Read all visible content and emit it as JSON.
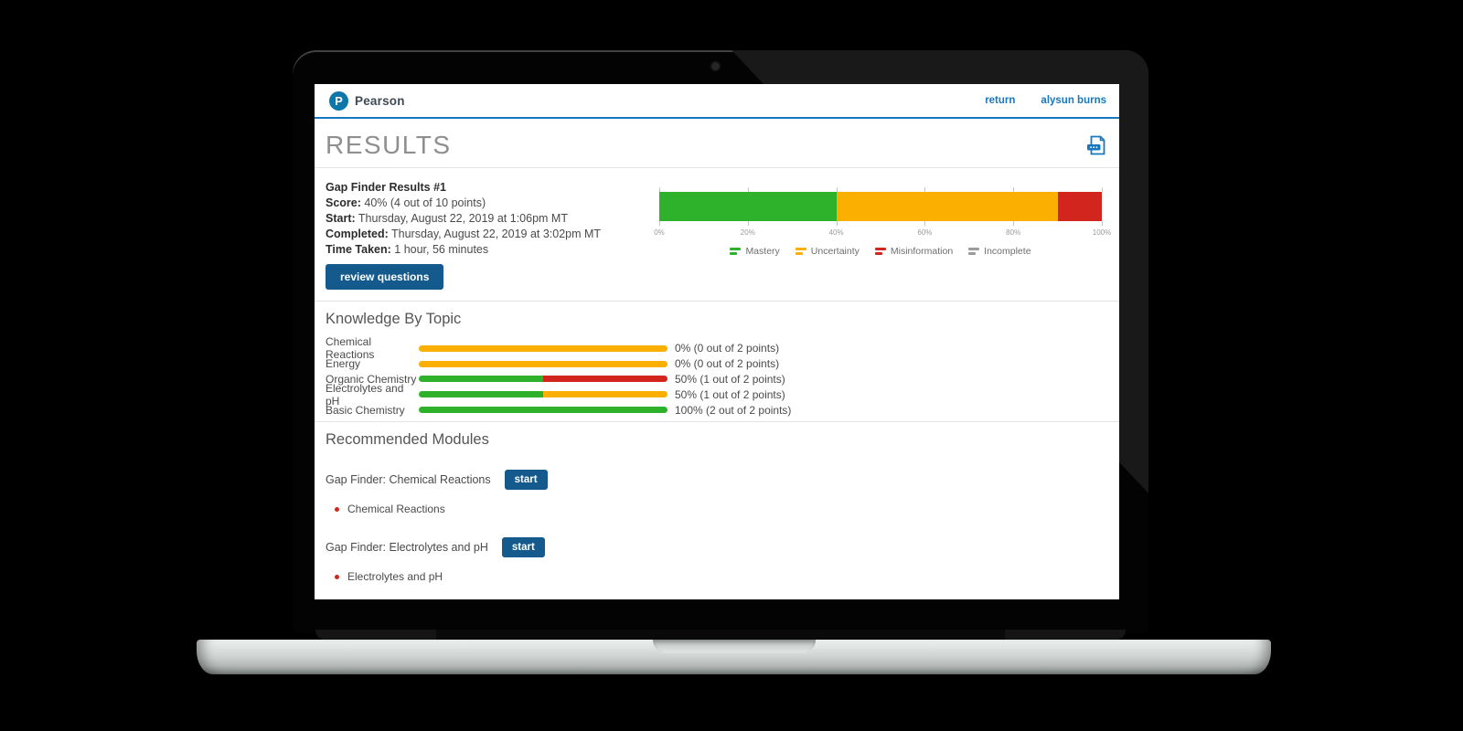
{
  "colors": {
    "green": "#2eb22b",
    "orange": "#fbaf00",
    "red": "#d1251d",
    "gray": "#9b9b9b",
    "link_blue": "#1878bf",
    "button_blue": "#155a8c",
    "logo_blue": "#0e76a8",
    "bullet_red": "#cc2a1e"
  },
  "icons": {
    "logo": "pearson-logo",
    "header_action": "pdf-print-icon",
    "legend_glyph": "mini-bar-chart-icon"
  },
  "header": {
    "brand": "Pearson",
    "logo_letter": "P",
    "links": [
      {
        "label": "return"
      },
      {
        "label": "alysun burns"
      }
    ]
  },
  "page": {
    "title": "RESULTS"
  },
  "summary": {
    "title": "Gap Finder Results #1",
    "fields": [
      {
        "label": "Score:",
        "value": "40% (4 out of 10 points)"
      },
      {
        "label": "Start:",
        "value": "Thursday, August 22, 2019 at 1:06pm MT"
      },
      {
        "label": "Completed:",
        "value": "Thursday, August 22, 2019 at 3:02pm MT"
      },
      {
        "label": "Time Taken:",
        "value": "1 hour, 56 minutes"
      }
    ],
    "review_button": "review questions"
  },
  "chart_data": {
    "type": "bar",
    "orientation": "horizontal",
    "stacked": true,
    "series": [
      {
        "name": "Mastery",
        "value": 40,
        "color": "#2eb22b"
      },
      {
        "name": "Uncertainty",
        "value": 50,
        "color": "#fbaf00"
      },
      {
        "name": "Misinformation",
        "value": 10,
        "color": "#d1251d"
      },
      {
        "name": "Incomplete",
        "value": 0,
        "color": "#9b9b9b"
      }
    ],
    "xlim": [
      0,
      100
    ],
    "ticks": [
      "0%",
      "20%",
      "40%",
      "60%",
      "80%",
      "100%"
    ],
    "legend_position": "bottom",
    "grid": false
  },
  "topics": {
    "heading": "Knowledge By Topic",
    "rows": [
      {
        "label": "Chemical Reactions",
        "result": "0% (0 out of 2 points)",
        "pct": 0,
        "segments": [
          {
            "color": "orange",
            "pct": 100
          }
        ]
      },
      {
        "label": "Energy",
        "result": "0% (0 out of 2 points)",
        "pct": 0,
        "segments": [
          {
            "color": "orange",
            "pct": 100
          }
        ]
      },
      {
        "label": "Organic Chemistry",
        "result": "50% (1 out of 2 points)",
        "pct": 50,
        "segments": [
          {
            "color": "green",
            "pct": 50
          },
          {
            "color": "red",
            "pct": 50
          }
        ]
      },
      {
        "label": "Electrolytes and pH",
        "result": "50% (1 out of 2 points)",
        "pct": 50,
        "segments": [
          {
            "color": "green",
            "pct": 50
          },
          {
            "color": "orange",
            "pct": 50
          }
        ]
      },
      {
        "label": "Basic Chemistry",
        "result": "100% (2 out of 2 points)",
        "pct": 100,
        "segments": [
          {
            "color": "green",
            "pct": 100
          }
        ]
      }
    ]
  },
  "modules": {
    "heading": "Recommended Modules",
    "items": [
      {
        "title": "Gap Finder: Chemical Reactions",
        "button": "start",
        "topics": [
          "Chemical Reactions"
        ]
      },
      {
        "title": "Gap Finder: Electrolytes and pH",
        "button": "start",
        "topics": [
          "Electrolytes and pH"
        ]
      }
    ]
  }
}
